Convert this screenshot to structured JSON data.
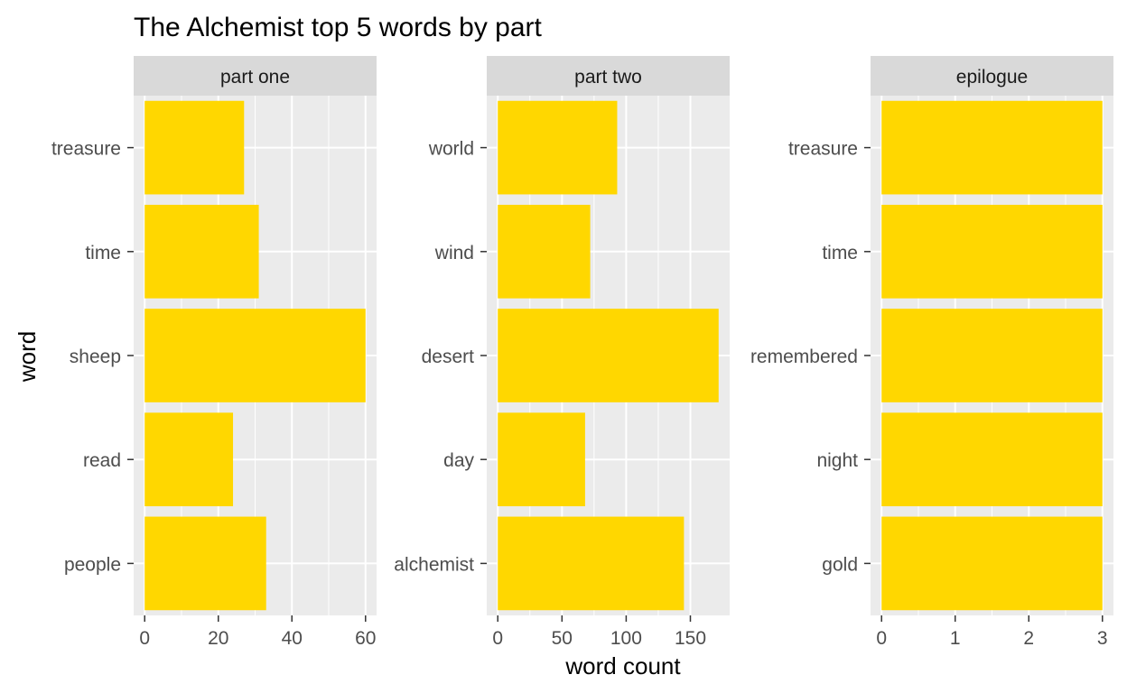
{
  "chart_data": {
    "type": "bar",
    "title": "The Alchemist top 5 words by part",
    "xlabel": "word count",
    "ylabel": "word",
    "orientation": "horizontal",
    "grid": true,
    "legend": "none",
    "bar_color": "#FFD700",
    "panel_color": "#EBEBEB",
    "strip_color": "#D9D9D9",
    "grid_color": "#FFFFFF",
    "facets": [
      {
        "name": "part one",
        "categories": [
          "treasure",
          "time",
          "sheep",
          "read",
          "people"
        ],
        "values": [
          27,
          31,
          60,
          24,
          33
        ],
        "xlim": [
          -3,
          63
        ],
        "ticks": [
          0,
          20,
          40,
          60
        ],
        "tick_labels": [
          "0",
          "20",
          "40",
          "60"
        ],
        "minor_ticks": [
          10,
          30,
          50
        ]
      },
      {
        "name": "part two",
        "categories": [
          "world",
          "wind",
          "desert",
          "day",
          "alchemist"
        ],
        "values": [
          93,
          72,
          172,
          68,
          145
        ],
        "xlim": [
          -8.6,
          180.6
        ],
        "ticks": [
          0,
          50,
          100,
          150
        ],
        "tick_labels": [
          "0",
          "50",
          "100",
          "150"
        ],
        "minor_ticks": [
          25,
          75,
          125
        ]
      },
      {
        "name": "epilogue",
        "categories": [
          "treasure",
          "time",
          "remembered",
          "night",
          "gold"
        ],
        "values": [
          3,
          3,
          3,
          3,
          3
        ],
        "xlim": [
          -0.15,
          3.15
        ],
        "ticks": [
          0,
          1,
          2,
          3
        ],
        "tick_labels": [
          "0",
          "1",
          "2",
          "3"
        ],
        "minor_ticks": [
          0.5,
          1.5,
          2.5
        ]
      }
    ]
  }
}
